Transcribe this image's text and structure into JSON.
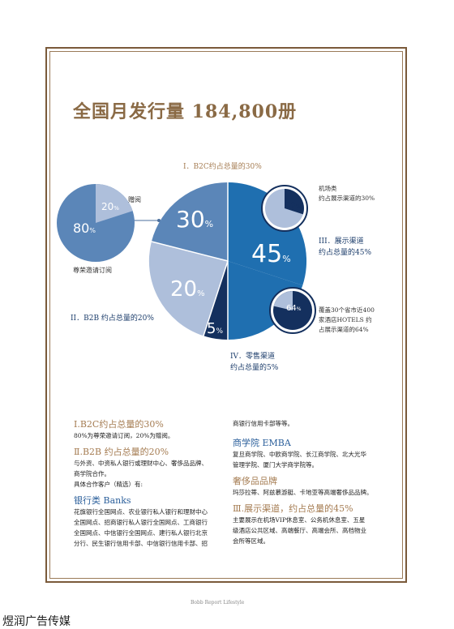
{
  "title": "全国月发行量 184,800册",
  "chart": {
    "main_segments": [
      {
        "label": "30",
        "pct": "%"
      },
      {
        "label": "45",
        "pct": "%"
      },
      {
        "label": "5",
        "pct": "%"
      },
      {
        "label": "20",
        "pct": "%"
      }
    ],
    "left_pie": {
      "big": "80",
      "small": "20",
      "pct": "%",
      "small_label": "赠阅",
      "caption": "尊荣邀请订阅"
    },
    "top_small": {
      "value": "30",
      "pct": "%",
      "label_line1": "机场类",
      "label_line2": "约占展示渠道的30%"
    },
    "bottom_small": {
      "value": "64",
      "pct": "%",
      "label_line1": "覆盖30个省市近400",
      "label_line2": "家酒店HOTELS 约",
      "label_line3": "占展示渠道的64%"
    },
    "label_b2c": "I．B2C约占总量的30%",
    "label_b2b": "II．B2B 约占总量的20%",
    "label_show_1": "III．展示渠道",
    "label_show_2": "约占总量的45%",
    "label_retail_1": "IV．零售渠道",
    "label_retail_2": "约占总量的5%"
  },
  "chart_data": {
    "type": "pie",
    "categories": [
      "B2C",
      "展示渠道",
      "零售渠道",
      "B2B"
    ],
    "values": [
      30,
      45,
      5,
      20
    ],
    "sub_pies": [
      {
        "categories": [
          "尊荣邀请订阅",
          "赠阅"
        ],
        "values": [
          80,
          20
        ]
      },
      {
        "categories": [
          "机场类"
        ],
        "values": [
          30
        ]
      },
      {
        "categories": [
          "酒店"
        ],
        "values": [
          64
        ]
      }
    ]
  },
  "left_col": {
    "s1_title": "Ⅰ.B2C约占总量的30%",
    "s1_text": "80%为尊荣邀请订阅，20%为赠阅。",
    "s2_title": "Ⅱ.B2B 约占总量的20%",
    "s2_text1": "与外资、中资私人银行或理财中心、奢侈品品牌、",
    "s2_text2": "商学院合作。",
    "s2_text3": "具体合作客户（精选）有:",
    "banks_title": "银行类 Banks",
    "banks_1": "花旗银行全国网点、农业银行私人银行和理财中心",
    "banks_2": "全国网点、招商银行私人银行全国网点、工商银行",
    "banks_3": "全国网点、中信银行全国网点、建行私人银行北京",
    "banks_4": "分行、民生银行信用卡部、中信银行信用卡部、招"
  },
  "right_col": {
    "cont": "商银行信用卡部等等。",
    "emba_title": "商学院 EMBA",
    "emba_1": "复旦商学院、中欧商学院、长江商学院、北大光华",
    "emba_2": "管理学院、厦门大学商学院等。",
    "lux_title": "奢侈品品牌",
    "lux_1": "玛莎拉蒂、阿兹慕游艇、卡地亚等高端奢侈品品牌。",
    "s3_title": "Ⅲ.展示渠道，约占总量的45%",
    "s3_1": "主要展示在机场VIP休息室、公务机休息室、五星",
    "s3_2": "级酒店公共区域、高端餐厅、高端会所、高档物业",
    "s3_3": "会所等区域。"
  },
  "footer": {
    "brand": "Bobb Report Lifestyle",
    "watermark": "煜润广告传媒"
  },
  "colors": {
    "gold": "#a57c52",
    "mid_blue": "#5b86b8",
    "dark_blue": "#1f6fb0",
    "navy": "#14305e",
    "light_blue": "#aebfdb"
  }
}
